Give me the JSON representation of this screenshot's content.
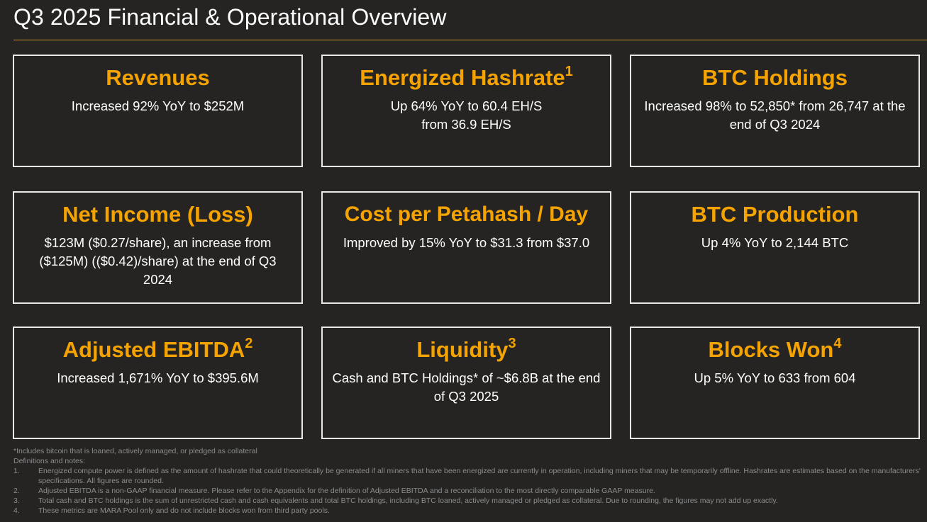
{
  "header": {
    "title": "Q3 2025 Financial & Operational Overview"
  },
  "colors": {
    "background": "#252423",
    "accent": "#f5a300",
    "rule": "#c9962a",
    "card_border": "#e8e8e8",
    "footnote": "#8c8c8c"
  },
  "cards": [
    {
      "title": "Revenues",
      "sup": "",
      "body": "Increased 92% YoY to $252M"
    },
    {
      "title": "Energized Hashrate",
      "sup": "1",
      "body": "Up 64% YoY to 60.4 EH/S from 36.9 EH/S"
    },
    {
      "title": "BTC Holdings",
      "sup": "",
      "body": "Increased 98% to 52,850* from 26,747 at the end of Q3 2024"
    },
    {
      "title": "Net Income (Loss)",
      "sup": "",
      "body": "$123M ($0.27/share), an increase from ($125M) (($0.42)/share) at the end of Q3 2024"
    },
    {
      "title": "Cost per Petahash / Day",
      "sup": "",
      "body": "Improved by 15% YoY to $31.3 from $37.0"
    },
    {
      "title": "BTC Production",
      "sup": "",
      "body": "Up 4% YoY to 2,144 BTC"
    },
    {
      "title": "Adjusted EBITDA",
      "sup": "2",
      "body": "Increased 1,671% YoY to $395.6M"
    },
    {
      "title": "Liquidity",
      "sup": "3",
      "body": "Cash and BTC Holdings* of ~$6.8B at the end of Q3 2025"
    },
    {
      "title": "Blocks Won",
      "sup": "4",
      "body": "Up 5% YoY to 633 from 604"
    }
  ],
  "footnotes": {
    "asterisk": "*Includes bitcoin that is loaned, actively managed, or pledged as collateral",
    "heading": "Definitions and notes:",
    "items": [
      {
        "num": "1.",
        "text": "Energized compute power is defined as the amount of hashrate that could theoretically be generated if all miners that have been energized are currently in operation, including miners that may be temporarily offline. Hashrates are estimates based on the manufacturers' specifications. All figures are rounded."
      },
      {
        "num": "2.",
        "text": "Adjusted EBITDA is a non-GAAP financial measure. Please refer to the Appendix for the definition of Adjusted EBITDA and a reconciliation to the most directly comparable GAAP measure."
      },
      {
        "num": "3.",
        "text": "Total cash and BTC holdings is the sum of unrestricted cash and cash equivalents and total BTC holdings, including BTC loaned, actively managed or pledged as collateral.  Due to rounding, the figures may not add up exactly."
      },
      {
        "num": "4.",
        "text": "These metrics are MARA Pool only and do not include blocks won from third party pools."
      }
    ]
  }
}
